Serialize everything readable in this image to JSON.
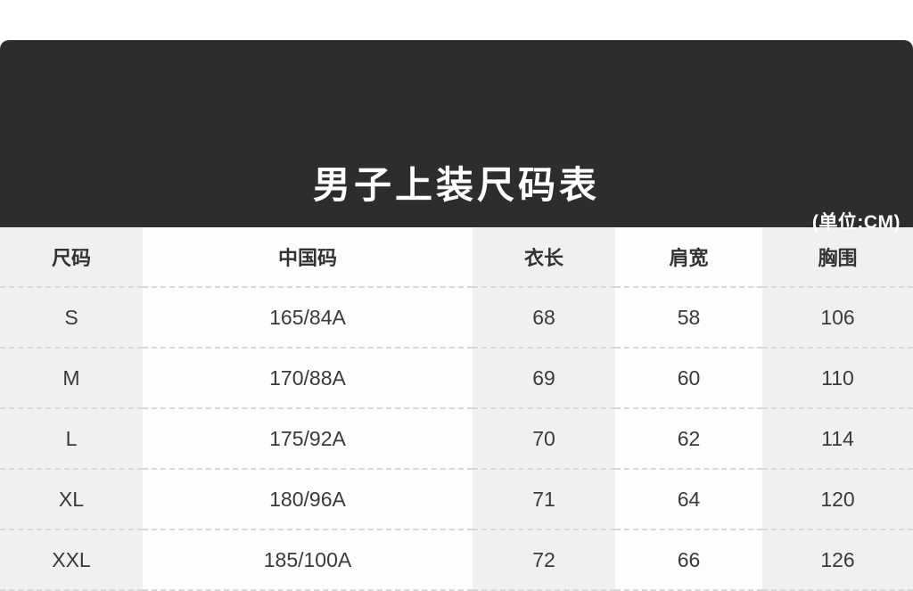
{
  "banner": {
    "title": "男子上装尺码表",
    "unit_label": "(单位:CM)",
    "background_color": "#2d2d2d",
    "text_color": "#ffffff"
  },
  "table": {
    "columns": [
      "尺码",
      "中国码",
      "衣长",
      "肩宽",
      "胸围"
    ],
    "rows": [
      [
        "S",
        "165/84A",
        "68",
        "58",
        "106"
      ],
      [
        "M",
        "170/88A",
        "69",
        "60",
        "110"
      ],
      [
        "L",
        "175/92A",
        "70",
        "62",
        "114"
      ],
      [
        "XL",
        "180/96A",
        "71",
        "64",
        "120"
      ],
      [
        "XXL",
        "185/100A",
        "72",
        "66",
        "126"
      ]
    ],
    "stripe_color": "#f0f0ef",
    "alt_color": "#fdfdfd",
    "divider_style": "dashed"
  },
  "chart_data": {
    "type": "table",
    "title": "男子上装尺码表",
    "unit": "CM",
    "columns": [
      "尺码",
      "中国码",
      "衣长",
      "肩宽",
      "胸围"
    ],
    "rows": [
      [
        "S",
        "165/84A",
        68,
        58,
        106
      ],
      [
        "M",
        "170/88A",
        69,
        60,
        110
      ],
      [
        "L",
        "175/92A",
        70,
        62,
        114
      ],
      [
        "XL",
        "180/96A",
        71,
        64,
        120
      ],
      [
        "XXL",
        "185/100A",
        72,
        66,
        126
      ]
    ]
  }
}
